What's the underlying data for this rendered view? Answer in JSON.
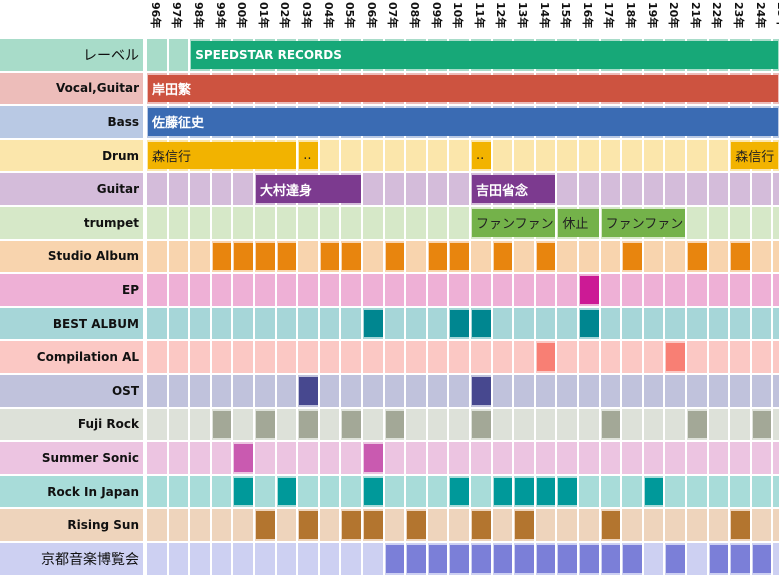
{
  "chart_data": {
    "type": "table",
    "years": [
      "96年",
      "97年",
      "98年",
      "99年",
      "00年",
      "01年",
      "02年",
      "03年",
      "04年",
      "05年",
      "06年",
      "07年",
      "08年",
      "09年",
      "10年",
      "11年",
      "12年",
      "13年",
      "14年",
      "15年",
      "16年",
      "17年",
      "18年",
      "19年",
      "20年",
      "21年",
      "22年",
      "23年",
      "24年",
      "25年"
    ],
    "rows": [
      {
        "label": "レーベル",
        "big": true,
        "bg": "#a8dcc9",
        "bars": [
          {
            "text": "SPEEDSTAR RECORDS",
            "from": 2,
            "to": 29,
            "color": "#17a878",
            "size": 12
          }
        ],
        "marks": []
      },
      {
        "label": "Vocal,Guitar",
        "bg": "#edbdba",
        "bars": [
          {
            "text": "岸田繁",
            "from": 0,
            "to": 29,
            "color": "#cd5340"
          }
        ],
        "marks": []
      },
      {
        "label": "Bass",
        "bg": "#b9c9e4",
        "bars": [
          {
            "text": "佐藤征史",
            "from": 0,
            "to": 29,
            "color": "#3a6bb3"
          }
        ],
        "marks": []
      },
      {
        "label": "Drum",
        "bg": "#fbe6ab",
        "bars": [
          {
            "text": "森信行",
            "from": 0,
            "to": 6,
            "color": "#f2b300",
            "dark": true
          },
          {
            "text": "..",
            "from": 7,
            "to": 7,
            "color": "#f2b300",
            "dark": true
          },
          {
            "text": "..",
            "from": 15,
            "to": 15,
            "color": "#f2b300",
            "dark": true
          },
          {
            "text": "森信行",
            "from": 27,
            "to": 29,
            "color": "#f2b300",
            "dark": true
          }
        ],
        "marks": []
      },
      {
        "label": "Guitar",
        "bg": "#d4bcda",
        "bars": [
          {
            "text": "大村達身",
            "from": 5,
            "to": 9,
            "color": "#7c3a8f"
          },
          {
            "text": "吉田省念",
            "from": 15,
            "to": 18,
            "color": "#7c3a8f"
          }
        ],
        "marks": []
      },
      {
        "label": "trumpet",
        "bg": "#d6e8c8",
        "bars": [
          {
            "text": "ファンファン",
            "from": 15,
            "to": 18,
            "color": "#74b24a",
            "dark": true
          },
          {
            "text": "休止",
            "from": 19,
            "to": 20,
            "color": "#74b24a",
            "dark": true
          },
          {
            "text": "ファンファン",
            "from": 21,
            "to": 24,
            "color": "#74b24a",
            "dark": true
          }
        ],
        "marks": []
      },
      {
        "label": "Studio Album",
        "bg": "#f8d4ae",
        "bars": [],
        "marks": [
          3,
          4,
          5,
          6,
          8,
          9,
          11,
          13,
          14,
          16,
          18,
          22,
          25,
          27
        ],
        "mark_color": "#e8850e"
      },
      {
        "label": "EP",
        "bg": "#eeb0d6",
        "bars": [],
        "marks": [
          20
        ],
        "mark_color": "#cc1a95"
      },
      {
        "label": "BEST ALBUM",
        "bg": "#a6d6d8",
        "bars": [],
        "marks": [
          10,
          14,
          15,
          20
        ],
        "mark_color": "#008690"
      },
      {
        "label": "Compilation AL",
        "bg": "#fbc8c4",
        "bars": [],
        "marks": [
          18,
          24
        ],
        "mark_color": "#f87f74"
      },
      {
        "label": "OST",
        "bg": "#c0c2dc",
        "bars": [],
        "marks": [
          7,
          15
        ],
        "mark_color": "#47488f"
      },
      {
        "label": "Fuji Rock",
        "bg": "#dde1d9",
        "bars": [],
        "marks": [
          3,
          5,
          7,
          9,
          11,
          15,
          21,
          25,
          28
        ],
        "mark_color": "#a3a897"
      },
      {
        "label": "Summer Sonic",
        "bg": "#ecc4e1",
        "bars": [],
        "marks": [
          4,
          10
        ],
        "mark_color": "#c95ab0"
      },
      {
        "label": "Rock In Japan",
        "bg": "#a8dcd9",
        "bars": [],
        "marks": [
          4,
          6,
          10,
          14,
          16,
          17,
          18,
          19,
          23
        ],
        "mark_color": "#00999a"
      },
      {
        "label": "Rising Sun",
        "bg": "#eed4bc",
        "bars": [],
        "marks": [
          5,
          7,
          9,
          10,
          12,
          15,
          17,
          21,
          27
        ],
        "mark_color": "#b3752f"
      },
      {
        "label": "京都音楽博覧会",
        "big": true,
        "bg": "#cdd0f2",
        "bars": [],
        "marks": [
          11,
          12,
          13,
          14,
          15,
          16,
          17,
          18,
          19,
          20,
          21,
          22,
          24,
          26,
          27,
          28
        ],
        "mark_color": "#7b7fd8"
      }
    ]
  }
}
